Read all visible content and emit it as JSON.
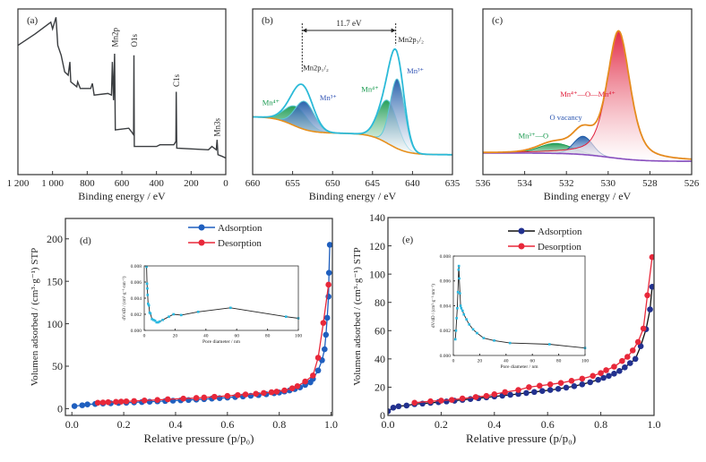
{
  "chart_data": [
    {
      "panel_label": "(a)",
      "type": "line",
      "xlabel": "Binding energy / eV",
      "ylabel": "",
      "xlim": [
        1200,
        0
      ],
      "ylim": [
        0,
        1
      ],
      "xticks": [
        1200,
        1000,
        800,
        600,
        400,
        200,
        0
      ],
      "xtick_labels": [
        "1 200",
        "1 000",
        "800",
        "600",
        "400",
        "200",
        "0"
      ],
      "series": [
        {
          "color": "#3a3d40",
          "x": [
            1200,
            1100,
            1010,
            1000,
            980,
            970,
            950,
            930,
            910,
            900,
            895,
            860,
            855,
            840,
            780,
            770,
            760,
            680,
            660,
            655,
            648,
            642,
            638,
            560,
            545,
            532,
            530,
            528,
            400,
            380,
            300,
            288,
            286,
            283,
            100,
            80,
            55,
            50,
            45,
            20,
            0
          ],
          "y": [
            0.78,
            0.85,
            0.92,
            0.88,
            0.95,
            0.78,
            0.72,
            0.62,
            0.6,
            0.68,
            0.56,
            0.53,
            0.56,
            0.52,
            0.52,
            0.55,
            0.48,
            0.49,
            0.48,
            0.68,
            0.45,
            0.73,
            0.27,
            0.28,
            0.26,
            0.24,
            0.72,
            0.17,
            0.17,
            0.18,
            0.18,
            0.2,
            0.5,
            0.16,
            0.15,
            0.17,
            0.15,
            0.21,
            0.12,
            0.11,
            0.1
          ]
        }
      ],
      "annotations": [
        {
          "text": "Mn2p",
          "x": 640,
          "y": 0.77,
          "rotate": true,
          "color": "#222"
        },
        {
          "text": "O1s",
          "x": 528,
          "y": 0.77,
          "rotate": true,
          "color": "#222"
        },
        {
          "text": "C1s",
          "x": 284,
          "y": 0.53,
          "rotate": true,
          "color": "#222"
        },
        {
          "text": "Mn3s",
          "x": 48,
          "y": 0.23,
          "rotate": true,
          "color": "#222"
        }
      ]
    },
    {
      "panel_label": "(b)",
      "type": "area",
      "xlabel": "Binding energy / eV",
      "ylabel": "",
      "xlim": [
        660,
        635
      ],
      "ylim": [
        0,
        1
      ],
      "xticks": [
        660,
        655,
        650,
        645,
        640,
        635
      ],
      "xtick_labels": [
        "660",
        "655",
        "650",
        "645",
        "640",
        "635"
      ],
      "background": {
        "base": 0.12,
        "steps": [
          {
            "center": 643,
            "height": 0.13,
            "width": 1.2
          },
          {
            "center": 655,
            "height": 0.1,
            "width": 1.2
          }
        ],
        "color": "#e8901c"
      },
      "envelope_color": "#2bbad8",
      "components": [
        {
          "name": "Mn4+",
          "center": 654.6,
          "height": 0.12,
          "sigma": 1.4,
          "lorentz": 0,
          "color": "#1a9a50"
        },
        {
          "name": "Mn3+",
          "center": 653.5,
          "height": 0.17,
          "sigma": 1.2,
          "lorentz": 0,
          "color": "#1d5aa8"
        },
        {
          "name": "Mn4+",
          "center": 643.1,
          "height": 0.26,
          "sigma": 1.2,
          "lorentz": 0,
          "color": "#1a9a50"
        },
        {
          "name": "Mn3+",
          "center": 641.9,
          "height": 0.42,
          "sigma": 0.9,
          "lorentz": 0,
          "color": "#1d5aa8"
        }
      ],
      "separation": {
        "text": "11.7 eV",
        "from": 653.8,
        "to": 642.1,
        "y": 0.87
      },
      "annotations": [
        {
          "text": "Mn2p₁/₂",
          "x": 653.7,
          "y": 0.63,
          "color": "#222"
        },
        {
          "text": "Mn2p₃/₂",
          "x": 641.8,
          "y": 0.8,
          "color": "#222"
        },
        {
          "text": "Mn⁴⁺",
          "x": 658.8,
          "y": 0.42,
          "color": "#1a9a50"
        },
        {
          "text": "Mn³⁺",
          "x": 651.6,
          "y": 0.45,
          "color": "#3355b5"
        },
        {
          "text": "Mn⁴⁺",
          "x": 646.4,
          "y": 0.5,
          "color": "#1a9a50"
        },
        {
          "text": "Mn³⁺",
          "x": 640.7,
          "y": 0.61,
          "color": "#3355b5"
        }
      ]
    },
    {
      "panel_label": "(c)",
      "type": "area",
      "xlabel": "Binding energy / eV",
      "ylabel": "",
      "xlim": [
        536,
        526
      ],
      "ylim": [
        0,
        1
      ],
      "xticks": [
        536,
        534,
        532,
        530,
        528,
        526
      ],
      "xtick_labels": [
        "536",
        "534",
        "532",
        "530",
        "528",
        "526"
      ],
      "background": {
        "base": 0.08,
        "steps": [
          {
            "center": 530,
            "height": 0.05,
            "width": 0.8
          }
        ],
        "color": "#8a4fbf"
      },
      "envelope_color": "#e58b1e",
      "components": [
        {
          "name": "Mn3+—O",
          "center": 532.5,
          "height": 0.06,
          "sigma": 0.8,
          "lorentz": 0,
          "color": "#1a9a50"
        },
        {
          "name": "O vacancy",
          "center": 531.2,
          "height": 0.11,
          "sigma": 0.45,
          "lorentz": 0,
          "color": "#1d5aa8"
        },
        {
          "name": "Mn4+—O—Mn4+",
          "center": 529.5,
          "height": 0.77,
          "sigma": 0.55,
          "lorentz": 0.5,
          "color": "#e0203c"
        }
      ],
      "annotations": [
        {
          "text": "Mn⁴⁺—O—Mn⁴⁺",
          "x": 532.3,
          "y": 0.47,
          "color": "#e0203c"
        },
        {
          "text": "O vacancy",
          "x": 532.8,
          "y": 0.33,
          "color": "#2a55b0"
        },
        {
          "text": "Mn³⁺—O",
          "x": 534.3,
          "y": 0.22,
          "color": "#1a9a50"
        }
      ]
    },
    {
      "panel_label": "(d)",
      "type": "scatter",
      "xlabel": "Relative pressure (p/p₀)",
      "ylabel": "Volumen adsorbed / (cm³·g⁻¹) STP",
      "xlim": [
        -0.025,
        1.005
      ],
      "ylim": [
        -8,
        224
      ],
      "xticks": [
        0,
        0.2,
        0.4,
        0.6,
        0.8,
        1.0
      ],
      "xtick_labels": [
        "0.0",
        "0.2",
        "0.4",
        "0.6",
        "0.8",
        "1.0"
      ],
      "yticks": [
        0,
        50,
        100,
        150,
        200
      ],
      "ytick_labels": [
        "0",
        "50",
        "100",
        "150",
        "200"
      ],
      "legend": "top-center",
      "series": [
        {
          "name": "Adsorption",
          "color": "#1f5fbf",
          "line": "#1f5fbf",
          "x": [
            0.01,
            0.04,
            0.06,
            0.09,
            0.12,
            0.15,
            0.18,
            0.21,
            0.24,
            0.27,
            0.3,
            0.33,
            0.36,
            0.39,
            0.42,
            0.45,
            0.48,
            0.51,
            0.54,
            0.57,
            0.6,
            0.63,
            0.66,
            0.69,
            0.72,
            0.75,
            0.78,
            0.8,
            0.82,
            0.84,
            0.86,
            0.88,
            0.9,
            0.92,
            0.93,
            0.95,
            0.965,
            0.975,
            0.98,
            0.985,
            0.99,
            0.992,
            0.995
          ],
          "y": [
            3,
            4,
            5,
            5.5,
            6,
            6.3,
            6.7,
            7,
            7.4,
            7.8,
            8.2,
            8.6,
            9,
            9.4,
            9.8,
            10.2,
            10.7,
            11.2,
            11.8,
            12.4,
            13,
            13.7,
            14.4,
            15.2,
            16,
            17,
            18.2,
            19,
            20.2,
            21.5,
            23,
            25,
            28,
            31,
            35,
            45,
            57,
            70,
            87,
            107,
            132,
            160,
            193
          ]
        },
        {
          "name": "Desorption",
          "color": "#e8283a",
          "line": "#e8283a",
          "x": [
            0.1,
            0.12,
            0.14,
            0.17,
            0.19,
            0.21,
            0.24,
            0.28,
            0.33,
            0.37,
            0.43,
            0.48,
            0.51,
            0.55,
            0.6,
            0.64,
            0.67,
            0.71,
            0.74,
            0.77,
            0.79,
            0.82,
            0.85,
            0.87,
            0.9,
            0.93,
            0.95,
            0.97,
            0.99
          ],
          "y": [
            7,
            7.3,
            7.6,
            8,
            8.3,
            8.6,
            9,
            9.6,
            10.3,
            11,
            11.8,
            12.6,
            13.2,
            14,
            15,
            16,
            16.7,
            17.5,
            18.4,
            19.3,
            20,
            21.5,
            24,
            26.5,
            32,
            39,
            60,
            101,
            146
          ]
        }
      ],
      "inset": {
        "xlabel": "Pore diameter / nm",
        "ylabel": "dV/dD / (cm³·g⁻¹·nm⁻¹)",
        "xlim": [
          0,
          100
        ],
        "ylim": [
          0,
          0.008
        ],
        "xticks": [
          0,
          20,
          40,
          60,
          80,
          100
        ],
        "xtick_labels": [
          "0",
          "20",
          "40",
          "60",
          "80",
          "100"
        ],
        "yticks": [
          0,
          0.002,
          0.004,
          0.006,
          0.008
        ],
        "ytick_labels": [
          "0.000",
          "0.002",
          "0.004",
          "0.006",
          "0.008"
        ],
        "x": [
          1.5,
          1.8,
          2,
          2.2,
          2.5,
          3,
          3.5,
          4,
          5,
          6,
          7,
          8,
          9,
          10,
          12,
          16,
          19,
          24,
          35,
          56,
          92,
          100
        ],
        "y": [
          0.0079,
          0.0058,
          0.0052,
          0.0044,
          0.0033,
          0.0031,
          0.0022,
          0.0021,
          0.0014,
          0.0013,
          0.0012,
          0.001,
          0.001,
          0.0011,
          0.0013,
          0.0017,
          0.002,
          0.0019,
          0.0023,
          0.0028,
          0.0017,
          0.0015
        ]
      }
    },
    {
      "panel_label": "(e)",
      "type": "scatter",
      "xlabel": "Relative pressure (p/p₀)",
      "ylabel": "Volumen adsorbed / (cm³·g⁻¹) STP",
      "xlim": [
        0,
        1.0
      ],
      "ylim": [
        0,
        140
      ],
      "xticks": [
        0,
        0.2,
        0.4,
        0.6,
        0.8,
        1.0
      ],
      "xtick_labels": [
        "0.0",
        "0.2",
        "0.4",
        "0.6",
        "0.8",
        "1.0"
      ],
      "yticks": [
        0,
        20,
        40,
        60,
        80,
        100,
        120,
        140
      ],
      "ytick_labels": [
        "0",
        "20",
        "40",
        "60",
        "80",
        "100",
        "120",
        "140"
      ],
      "legend": "top-center",
      "series": [
        {
          "name": "Adsorption",
          "color": "#22318f",
          "line": "#111111",
          "x": [
            0.0,
            0.02,
            0.04,
            0.07,
            0.1,
            0.13,
            0.16,
            0.19,
            0.22,
            0.25,
            0.28,
            0.31,
            0.34,
            0.37,
            0.4,
            0.43,
            0.46,
            0.49,
            0.52,
            0.55,
            0.58,
            0.61,
            0.64,
            0.67,
            0.7,
            0.73,
            0.76,
            0.79,
            0.81,
            0.83,
            0.85,
            0.87,
            0.89,
            0.91,
            0.93,
            0.95,
            0.97,
            0.985,
            0.993
          ],
          "y": [
            3,
            5.5,
            6.5,
            7,
            8,
            8.4,
            8.9,
            9.4,
            9.9,
            10.4,
            11,
            11.6,
            12.2,
            12.8,
            13.4,
            14,
            14.6,
            15.2,
            15.9,
            16.6,
            17.3,
            18,
            18.8,
            19.7,
            20.7,
            22,
            23.5,
            25.2,
            26.6,
            28,
            29.6,
            31.5,
            34,
            37,
            40,
            49,
            61,
            75,
            91
          ]
        },
        {
          "name": "Desorption",
          "color": "#e8283a",
          "line": "#e8283a",
          "x": [
            0.1,
            0.16,
            0.2,
            0.24,
            0.28,
            0.33,
            0.37,
            0.4,
            0.44,
            0.49,
            0.53,
            0.57,
            0.61,
            0.65,
            0.69,
            0.73,
            0.77,
            0.8,
            0.82,
            0.85,
            0.88,
            0.9,
            0.92,
            0.94,
            0.96,
            0.975,
            0.993
          ],
          "y": [
            9,
            10,
            10.5,
            11,
            12,
            13,
            13.8,
            15,
            16.5,
            18,
            20,
            21,
            22,
            23,
            24.5,
            26,
            28,
            30,
            32,
            34.5,
            38.5,
            41.5,
            46,
            52,
            61.5,
            85,
            112
          ]
        }
      ],
      "inset": {
        "xlabel": "Pore diameter / nm",
        "ylabel": "dV/dD / (cm³·g⁻¹·nm⁻¹)",
        "xlim": [
          0,
          100
        ],
        "ylim": [
          0,
          0.008
        ],
        "xticks": [
          0,
          20,
          40,
          60,
          80,
          100
        ],
        "xtick_labels": [
          "0",
          "20",
          "40",
          "60",
          "80",
          "100"
        ],
        "yticks": [
          0,
          0.002,
          0.004,
          0.006,
          0.008
        ],
        "ytick_labels": [
          "0.000",
          "0.002",
          "0.004",
          "0.006",
          "0.008"
        ],
        "x": [
          1.5,
          2,
          2.5,
          3,
          3.5,
          4,
          4.2,
          4.5,
          5,
          5.5,
          6,
          7,
          8,
          10,
          12,
          15,
          18,
          23,
          31,
          43,
          73,
          100
        ],
        "y": [
          0.0013,
          0.002,
          0.003,
          0.0038,
          0.0051,
          0.0069,
          0.0072,
          0.0062,
          0.005,
          0.004,
          0.0038,
          0.0036,
          0.0033,
          0.0029,
          0.0025,
          0.0021,
          0.0018,
          0.0014,
          0.0012,
          0.001,
          0.0009,
          0.0006
        ]
      }
    }
  ]
}
